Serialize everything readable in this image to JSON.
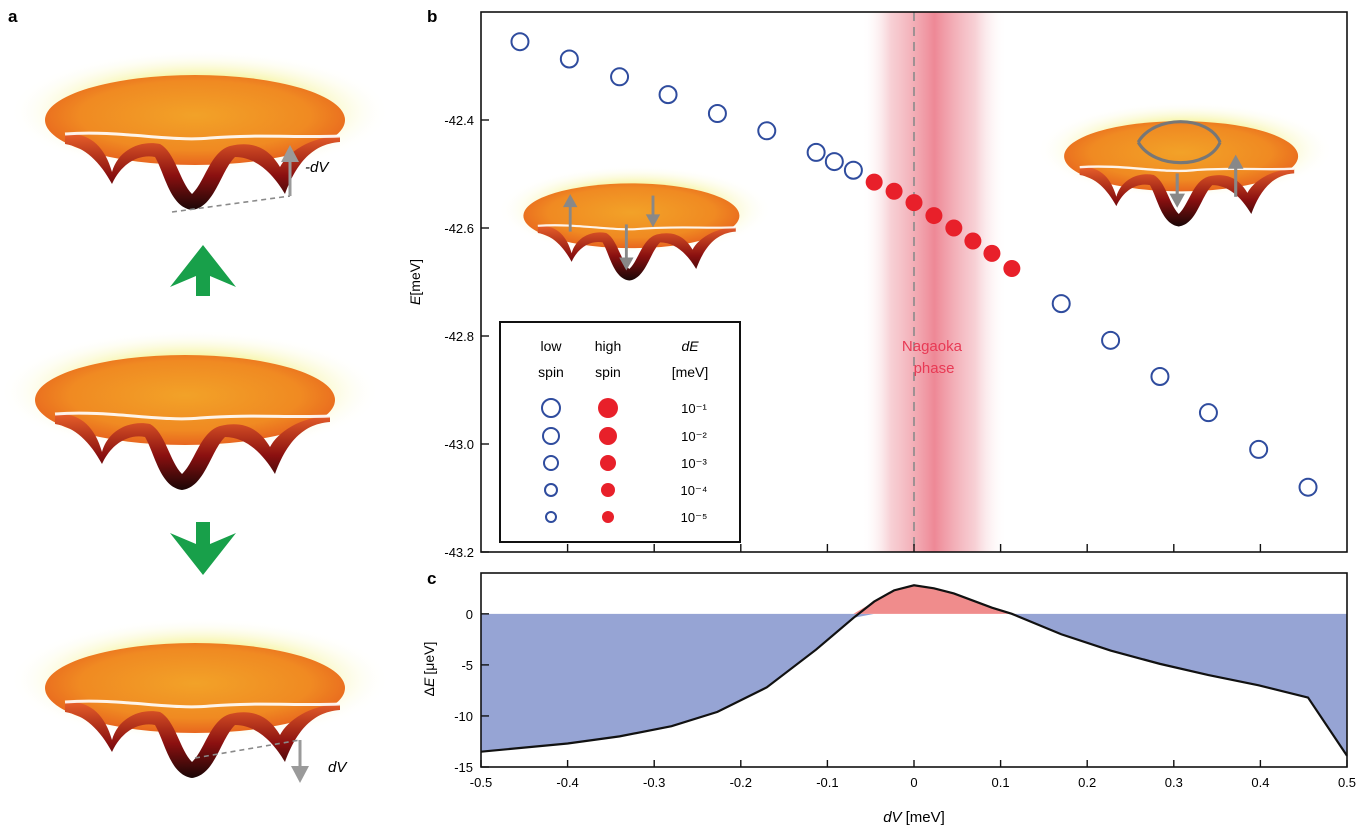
{
  "panels": {
    "a": {
      "label": "a",
      "arrow_up_label": "-dV",
      "arrow_down_label": "dV"
    },
    "b": {
      "label": "b"
    },
    "c": {
      "label": "c"
    }
  },
  "colors": {
    "low_spin": "#2f4c9e",
    "high_spin": "#e8202a",
    "nagaoka_band": "#e8576b",
    "delta_negative": "#96a4d4",
    "delta_positive": "#f08c8c",
    "green_arrow": "#18a04a"
  },
  "legend": {
    "headers": [
      {
        "line1": "low",
        "line2": "spin"
      },
      {
        "line1": "high",
        "line2": "spin"
      },
      {
        "line1": "dE",
        "line2": "[meV]"
      }
    ],
    "rows": [
      {
        "dE": "10⁻¹"
      },
      {
        "dE": "10⁻²"
      },
      {
        "dE": "10⁻³"
      },
      {
        "dE": "10⁻⁴"
      },
      {
        "dE": "10⁻⁵"
      }
    ]
  },
  "annotation": {
    "line1": "Nagaoka",
    "line2": "phase"
  },
  "chart_data": [
    {
      "panel": "b",
      "type": "scatter",
      "xlabel": "",
      "ylabel_italic": "E",
      "ylabel_unit": "[meV]",
      "xlim": [
        -0.5,
        0.5
      ],
      "ylim": [
        -43.2,
        -42.2
      ],
      "yticks": [
        -42.4,
        -42.6,
        -42.8,
        -43.0,
        -43.2
      ],
      "ytick_labels": [
        "-42.4",
        "-42.6",
        "-42.8",
        "-43.0",
        "-43.2"
      ],
      "grid": false,
      "nagaoka_band": [
        -0.06,
        0.11
      ],
      "dashed_line_x": 0,
      "series": [
        {
          "key": "low_spin",
          "marker": "open-circle",
          "points": [
            [
              -0.455,
              -42.255
            ],
            [
              -0.398,
              -42.287
            ],
            [
              -0.34,
              -42.32
            ],
            [
              -0.284,
              -42.353
            ],
            [
              -0.227,
              -42.388
            ],
            [
              -0.17,
              -42.42
            ],
            [
              -0.113,
              -42.46
            ],
            [
              -0.092,
              -42.477
            ],
            [
              -0.07,
              -42.493
            ],
            [
              0.17,
              -42.74
            ],
            [
              0.227,
              -42.808
            ],
            [
              0.284,
              -42.875
            ],
            [
              0.34,
              -42.942
            ],
            [
              0.398,
              -43.01
            ],
            [
              0.455,
              -43.08
            ]
          ]
        },
        {
          "key": "high_spin",
          "marker": "filled-circle",
          "points": [
            [
              -0.046,
              -42.515
            ],
            [
              -0.023,
              -42.532
            ],
            [
              0.0,
              -42.553
            ],
            [
              0.023,
              -42.577
            ],
            [
              0.046,
              -42.6
            ],
            [
              0.068,
              -42.624
            ],
            [
              0.09,
              -42.647
            ],
            [
              0.113,
              -42.675
            ]
          ]
        }
      ]
    },
    {
      "panel": "c",
      "type": "area",
      "xlabel_italic": "dV",
      "xlabel_unit": "[meV]",
      "ylabel_prefix": "Δ",
      "ylabel_italic": "E",
      "ylabel_unit": "[μeV]",
      "xlim": [
        -0.5,
        0.5
      ],
      "ylim": [
        -15,
        4
      ],
      "xticks": [
        -0.5,
        -0.4,
        -0.3,
        -0.2,
        -0.1,
        0,
        0.1,
        0.2,
        0.3,
        0.4,
        0.5
      ],
      "xtick_labels": [
        "-0.5",
        "-0.4",
        "-0.3",
        "-0.2",
        "-0.1",
        "0",
        "0.1",
        "0.2",
        "0.3",
        "0.4",
        "0.5"
      ],
      "yticks": [
        0,
        -5,
        -10,
        -15
      ],
      "ytick_labels": [
        "0",
        "-5",
        "-10",
        "-15"
      ],
      "grid": false,
      "x": [
        -0.5,
        -0.4,
        -0.34,
        -0.28,
        -0.227,
        -0.17,
        -0.113,
        -0.07,
        -0.046,
        -0.023,
        0.0,
        0.023,
        0.046,
        0.068,
        0.09,
        0.113,
        0.17,
        0.227,
        0.284,
        0.34,
        0.398,
        0.455,
        0.5
      ],
      "y": [
        -13.5,
        -12.7,
        -12.0,
        -11.0,
        -9.6,
        -7.2,
        -3.5,
        -0.4,
        1.2,
        2.3,
        2.8,
        2.5,
        2.0,
        1.3,
        0.6,
        0.0,
        -2.0,
        -3.6,
        -4.9,
        -6.0,
        -7.0,
        -8.2,
        -13.9
      ]
    }
  ]
}
